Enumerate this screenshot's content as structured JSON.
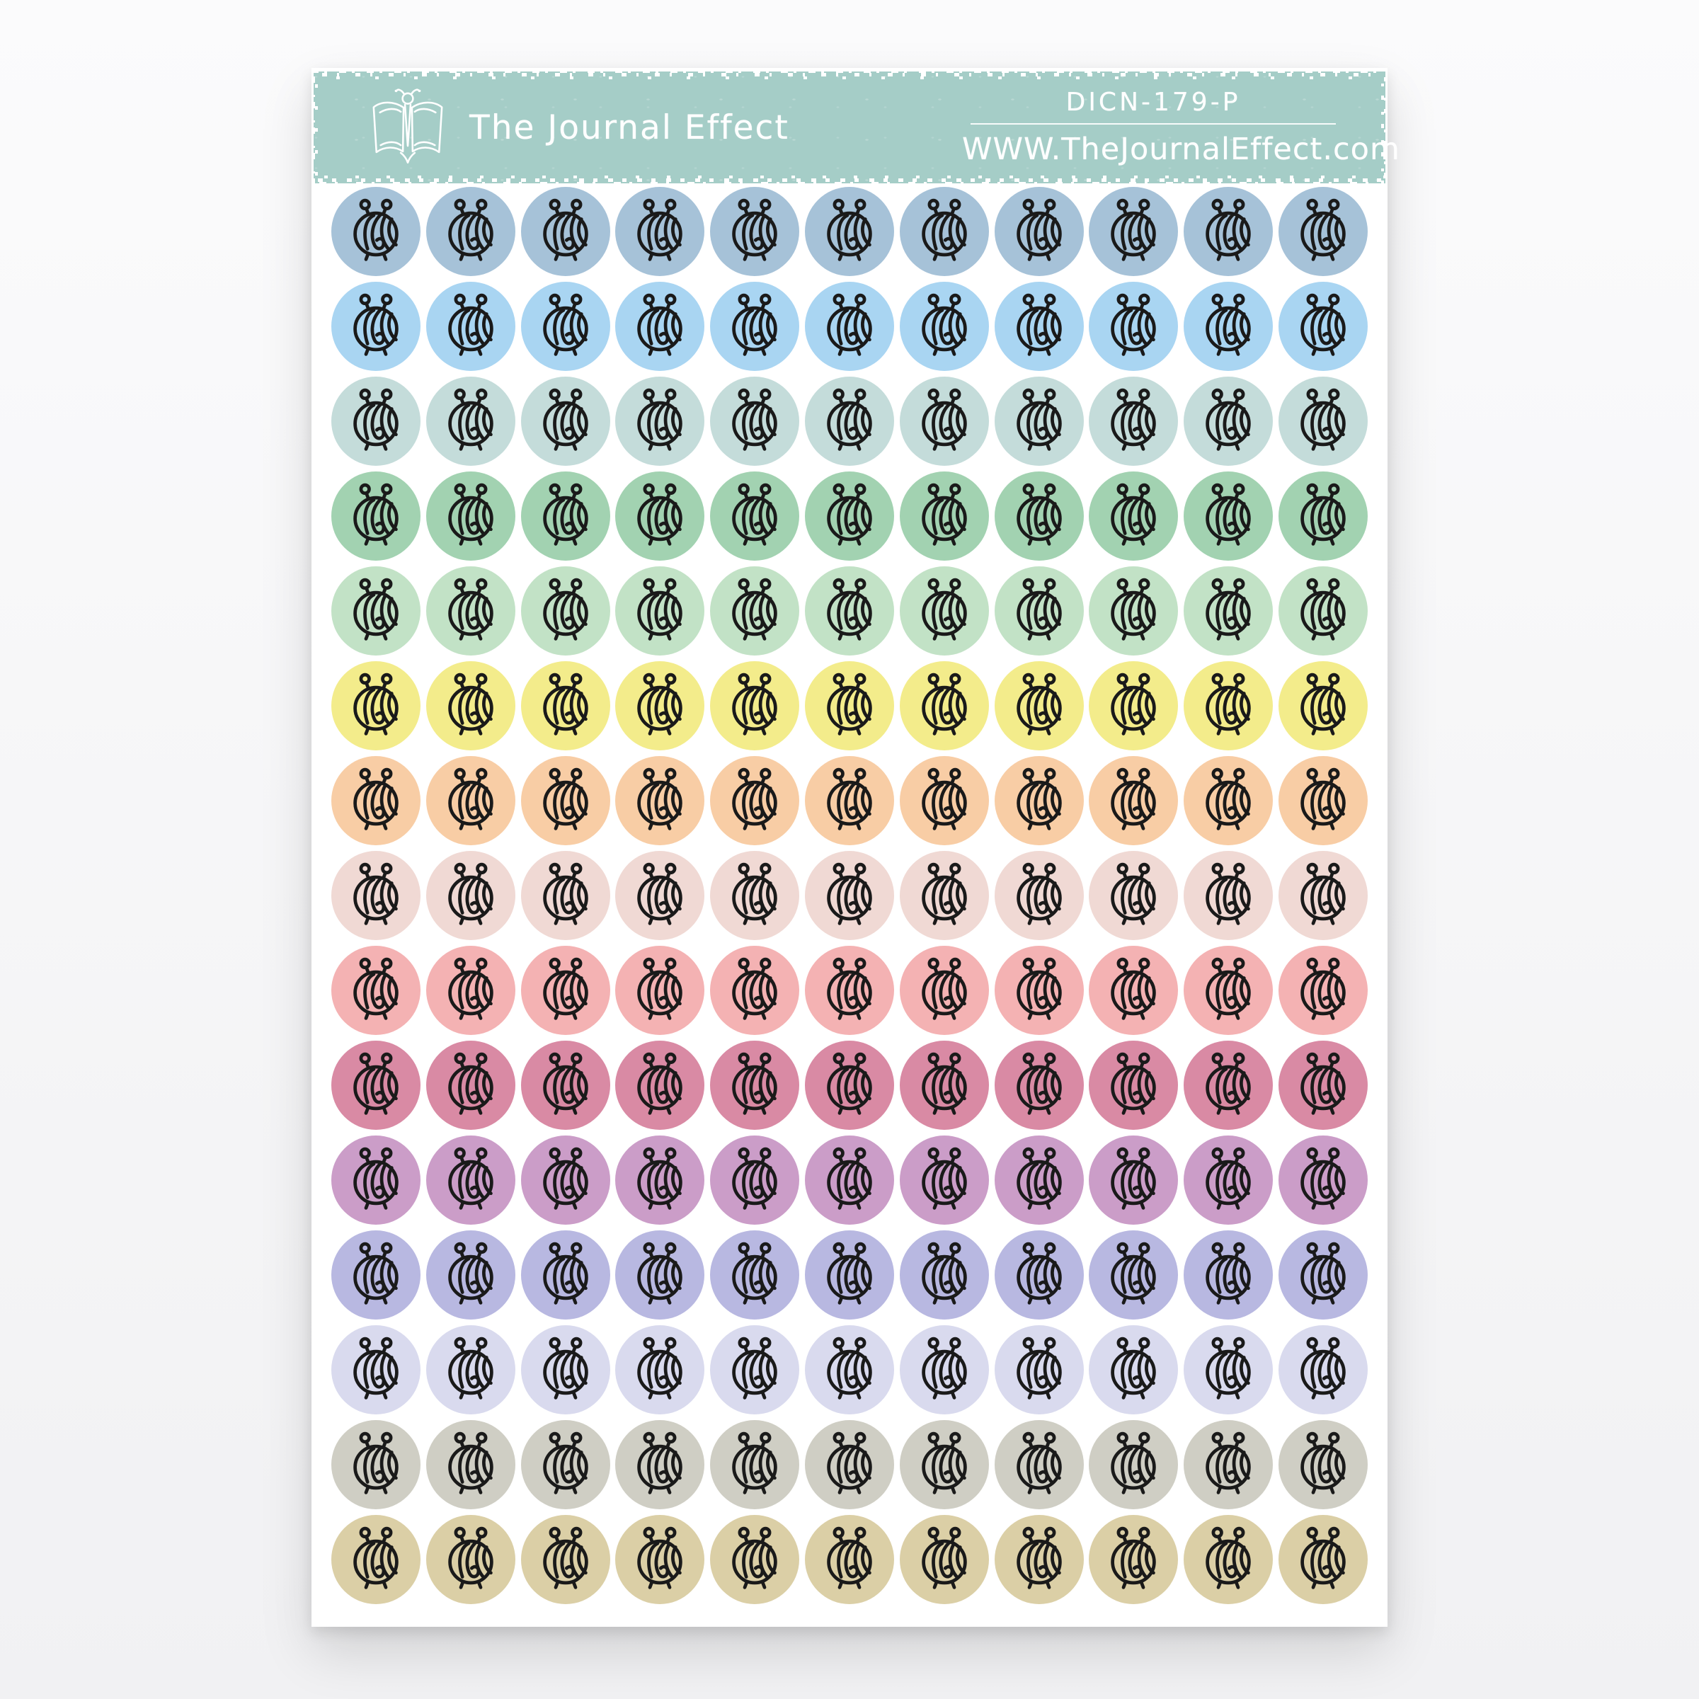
{
  "header": {
    "brand": "The Journal Effect",
    "logo_icon": "open-book-butterfly-logo",
    "product_code": "DICN-179-P",
    "website": "WWW.TheJournalEffect.com",
    "banner_color": "#a5cdc7",
    "text_color": "#ffffff"
  },
  "sheet": {
    "background": "#ffffff",
    "columns": 11,
    "row_count": 15,
    "sticker_icon": "yarn-ball-with-knitting-needles-icon",
    "icon_color": "#1a1a1a",
    "rows": [
      {
        "name": "steel-blue",
        "color": "#a6c2d8"
      },
      {
        "name": "sky-blue",
        "color": "#a9d5f2"
      },
      {
        "name": "pale-teal",
        "color": "#c4dcda"
      },
      {
        "name": "mint-green",
        "color": "#a2d2b1"
      },
      {
        "name": "pale-green",
        "color": "#c2e2c6"
      },
      {
        "name": "pastel-yellow",
        "color": "#f3ec8b"
      },
      {
        "name": "peach",
        "color": "#f8cda5"
      },
      {
        "name": "blush-pink",
        "color": "#f0d9d4"
      },
      {
        "name": "salmon-pink",
        "color": "#f4b2b3"
      },
      {
        "name": "rose",
        "color": "#d98aa4"
      },
      {
        "name": "mauve",
        "color": "#cb9dc8"
      },
      {
        "name": "periwinkle",
        "color": "#b8b8e1"
      },
      {
        "name": "pale-lavender",
        "color": "#d9daee"
      },
      {
        "name": "taupe-gray",
        "color": "#cfcec4"
      },
      {
        "name": "tan",
        "color": "#dbcfa6"
      }
    ]
  }
}
